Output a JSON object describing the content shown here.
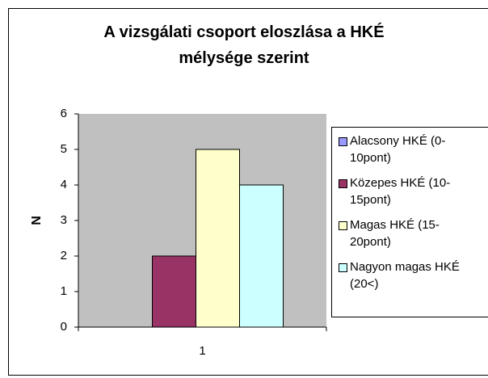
{
  "chart_data": {
    "type": "bar",
    "title": "A vizsgálati csoport eloszlása a HKÉ mélysége szerint",
    "y_label": "N",
    "categories": [
      "1"
    ],
    "series": [
      {
        "name": "Alacsony HKÉ (0-10pont)",
        "color": "#9999ff",
        "values": [
          0
        ]
      },
      {
        "name": "Közepes HKÉ (10-15pont)",
        "color": "#993366",
        "values": [
          2
        ]
      },
      {
        "name": "Magas HKÉ (15-20pont)",
        "color": "#ffffcc",
        "values": [
          5
        ]
      },
      {
        "name": "Nagyon magas HKÉ (20<)",
        "color": "#ccffff",
        "values": [
          4
        ]
      }
    ],
    "ylim": [
      0,
      6
    ],
    "yticks": [
      0,
      1,
      2,
      3,
      4,
      5,
      6
    ],
    "grid": false,
    "legend": "right"
  }
}
